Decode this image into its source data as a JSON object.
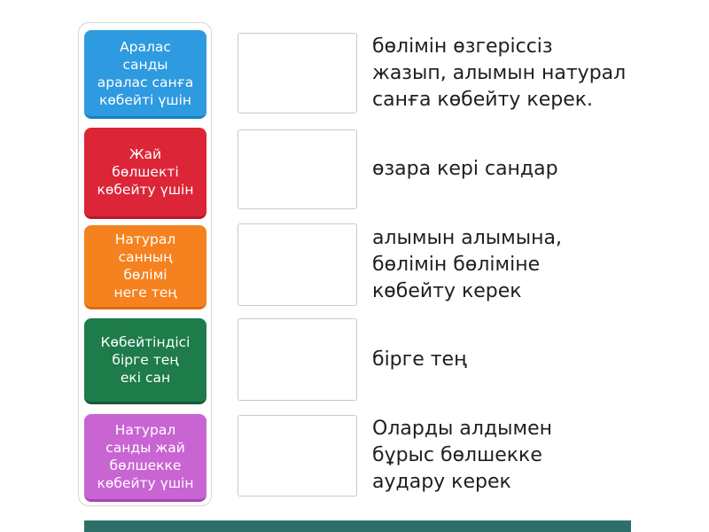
{
  "activity": {
    "type": "match-up"
  },
  "cards": [
    {
      "text": "Аралас\nсанды\nаралас санға\nкөбейті үшін",
      "color": "#2e9adf",
      "edge_color": "#1a7fc6"
    },
    {
      "text": "Жай\nбөлшекті\nкөбейту үшін",
      "color": "#dc2638",
      "edge_color": "#b21a2c"
    },
    {
      "text": "Натурал\nсанның\nбөлімі\nнеге тең",
      "color": "#f5821f",
      "edge_color": "#d96a10"
    },
    {
      "text": "Көбейтіндісі\nбірге тең\nекі сан",
      "color": "#1e7b4a",
      "edge_color": "#145c37"
    },
    {
      "text": "Натурал\nсанды жай\nбөлшекке\nкөбейту үшін",
      "color": "#c964d3",
      "edge_color": "#a843b5"
    }
  ],
  "answers": [
    {
      "text": "бөлімін өзгеріссіз\nжазып, алымын натурал\nсанға көбейту керек."
    },
    {
      "text": "өзара кері сандар"
    },
    {
      "text": "алымын алымына,\nбөлімін бөліміне\nкөбейту керек"
    },
    {
      "text": "бірге тең"
    },
    {
      "text": "Оларды алдымен\nбұрыс бөлшекке\nаудару керек"
    }
  ],
  "colors": {
    "panel_border": "#d6d6d6",
    "dropzone_border": "#c9c9c9",
    "bottom_bar": "#2d6e69",
    "definition_text": "#1f1f1f",
    "card_text": "#ffffff"
  }
}
